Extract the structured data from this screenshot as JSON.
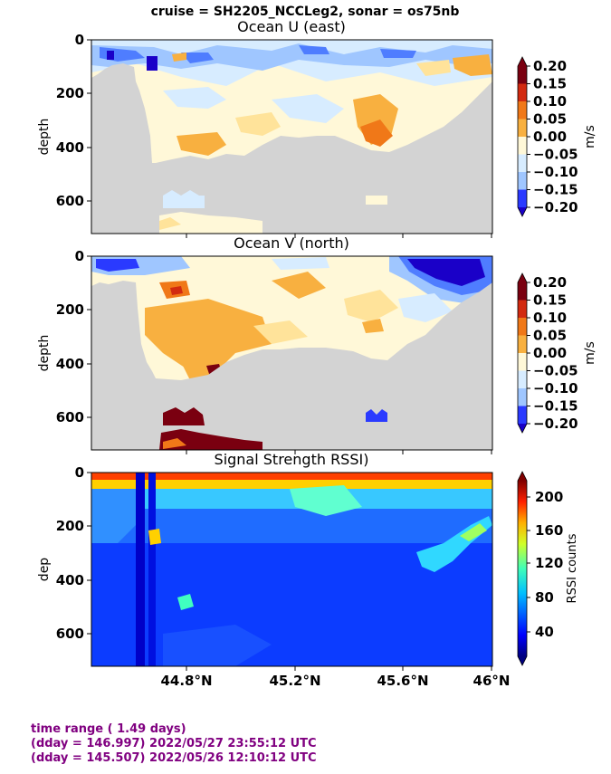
{
  "suptitle": "cruise = SH2205_NCCLeg2,  sonar = os75nb",
  "footer": {
    "line1": "time range ( 1.49 days)",
    "line2": "(dday = 146.997) 2022/05/27 23:55:12 UTC",
    "line3": "(dday = 145.507) 2022/05/26 12:10:12 UTC"
  },
  "colors": {
    "nodata": "#d3d3d3",
    "uv_palette": [
      "#1a00c8",
      "#2a3aff",
      "#4f7dff",
      "#9fc6ff",
      "#d7ecff",
      "#fff8d8",
      "#ffe39a",
      "#f8b040",
      "#f07818",
      "#d22a10",
      "#7a0010"
    ]
  },
  "chart_data": [
    {
      "type": "heatmap",
      "title": "Ocean U (east)",
      "ylabel": "depth",
      "yticks": [
        0,
        200,
        400,
        600
      ],
      "ylim": [
        720,
        0
      ],
      "xlim": [
        44.55,
        46.02
      ],
      "xticks": [
        "44.8°N",
        "45.2°N",
        "45.6°N",
        "46°N"
      ],
      "colorbar": {
        "label": "m/s",
        "ticks": [
          "0.20",
          "0.15",
          "0.10",
          "0.05",
          "0.00",
          "−0.05",
          "−0.10",
          "−0.15",
          "−0.20"
        ],
        "range": [
          -0.2,
          0.2
        ]
      },
      "bottom_depth_profile": {
        "lat": [
          44.55,
          44.57,
          44.59,
          44.61,
          44.63,
          44.65,
          44.67,
          44.7,
          44.75,
          44.8,
          44.85,
          44.9,
          45.0,
          45.1,
          45.2,
          45.3,
          45.4,
          45.5,
          45.6,
          45.7,
          45.75,
          45.8,
          45.85,
          45.9,
          45.95,
          46.0
        ],
        "depth": [
          120,
          110,
          100,
          95,
          90,
          110,
          460,
          450,
          430,
          460,
          450,
          420,
          430,
          400,
          360,
          340,
          330,
          340,
          330,
          320,
          300,
          280,
          250,
          220,
          200,
          180
        ]
      }
    },
    {
      "type": "heatmap",
      "title": "Ocean V (north)",
      "ylabel": "depth",
      "yticks": [
        0,
        200,
        400,
        600
      ],
      "ylim": [
        720,
        0
      ],
      "xlim": [
        44.55,
        46.02
      ],
      "xticks": [
        "44.8°N",
        "45.2°N",
        "45.6°N",
        "46°N"
      ],
      "colorbar": {
        "label": "m/s",
        "ticks": [
          "0.20",
          "0.15",
          "0.10",
          "0.05",
          "0.00",
          "−0.05",
          "−0.10",
          "−0.15",
          "−0.20"
        ],
        "range": [
          -0.2,
          0.2
        ]
      }
    },
    {
      "type": "heatmap",
      "title": "Signal Strength RSSI)",
      "ylabel": "dep",
      "yticks": [
        0,
        200,
        400,
        600
      ],
      "ylim": [
        720,
        0
      ],
      "xlim": [
        44.55,
        46.02
      ],
      "xticks": [
        "44.8°N",
        "45.2°N",
        "45.6°N",
        "46°N"
      ],
      "colorbar": {
        "label": "RSSI counts",
        "ticks": [
          "200",
          "160",
          "120",
          "80",
          "40"
        ],
        "range": [
          10,
          225
        ]
      }
    }
  ]
}
